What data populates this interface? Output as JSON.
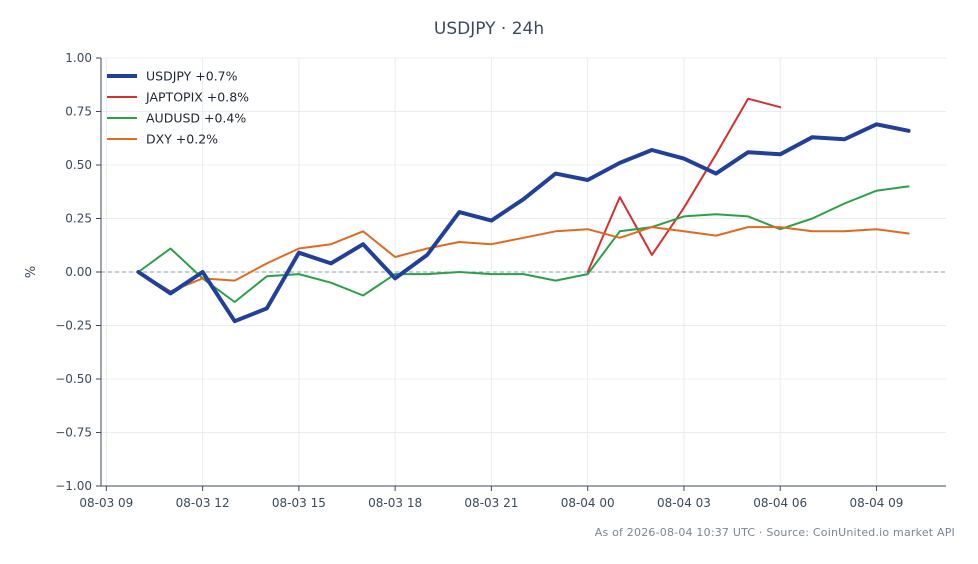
{
  "title": "USDJPY · 24h",
  "footer": "As of 2026-08-04 10:37 UTC · Source: CoinUnited.io market API",
  "colors": {
    "axis": "#3b4a5c",
    "grid": "#e8ecf1",
    "zero_line": "#8a9bb5",
    "text": "#3b4a5c",
    "footer": "#7a8594"
  },
  "chart_data": {
    "type": "line",
    "title": "USDJPY · 24h",
    "xlabel": "",
    "ylabel": "%",
    "ylim": [
      -1.0,
      1.0
    ],
    "yticks": [
      -1.0,
      -0.75,
      -0.5,
      -0.25,
      0.0,
      0.25,
      0.5,
      0.75,
      1.0
    ],
    "ytick_labels": [
      "−1.00",
      "−0.75",
      "−0.50",
      "−0.25",
      "0.00",
      "0.25",
      "0.50",
      "0.75",
      "1.00"
    ],
    "xlim": [
      "08-03 08:50",
      "08-04 11:10"
    ],
    "xticks": [
      "08-03 09:00",
      "08-03 12:00",
      "08-03 15:00",
      "08-03 18:00",
      "08-03 21:00",
      "08-04 00:00",
      "08-04 03:00",
      "08-04 06:00",
      "08-04 09:00"
    ],
    "xtick_labels": [
      "08-03 09",
      "08-03 12",
      "08-03 15",
      "08-03 18",
      "08-03 21",
      "08-04 00",
      "08-04 03",
      "08-04 06",
      "08-04 09"
    ],
    "grid": true,
    "zero_line": "dashed",
    "legend_position": "top-left",
    "series": [
      {
        "name": "USDJPY +0.7%",
        "color": "#22409a",
        "line_weight": "thick",
        "x": [
          "08-03 10:00",
          "08-03 11:00",
          "08-03 12:00",
          "08-03 13:00",
          "08-03 14:00",
          "08-03 15:00",
          "08-03 16:00",
          "08-03 17:00",
          "08-03 18:00",
          "08-03 19:00",
          "08-03 20:00",
          "08-03 21:00",
          "08-03 22:00",
          "08-03 23:00",
          "08-04 00:00",
          "08-04 01:00",
          "08-04 02:00",
          "08-04 03:00",
          "08-04 04:00",
          "08-04 05:00",
          "08-04 06:00",
          "08-04 07:00",
          "08-04 08:00",
          "08-04 09:00",
          "08-04 10:00"
        ],
        "values": [
          0.0,
          -0.1,
          0.0,
          -0.23,
          -0.17,
          0.09,
          0.04,
          0.13,
          -0.03,
          0.08,
          0.28,
          0.24,
          0.34,
          0.46,
          0.43,
          0.51,
          0.57,
          0.53,
          0.46,
          0.56,
          0.55,
          0.63,
          0.62,
          0.69,
          0.66
        ]
      },
      {
        "name": "JAPTOPIX +0.8%",
        "color": "#d62f2f",
        "line_weight": "normal",
        "x": [
          "08-04 00:00",
          "08-04 01:00",
          "08-04 02:00",
          "08-04 03:00",
          "08-04 04:00",
          "08-04 05:00",
          "08-04 06:00"
        ],
        "values": [
          0.0,
          0.35,
          0.08,
          0.3,
          0.55,
          0.81,
          0.77
        ]
      },
      {
        "name": "AUDUSD +0.4%",
        "color": "#2ca048",
        "line_weight": "normal",
        "x": [
          "08-03 10:00",
          "08-03 11:00",
          "08-03 12:00",
          "08-03 13:00",
          "08-03 14:00",
          "08-03 15:00",
          "08-03 16:00",
          "08-03 17:00",
          "08-03 18:00",
          "08-03 19:00",
          "08-03 20:00",
          "08-03 21:00",
          "08-03 22:00",
          "08-03 23:00",
          "08-04 00:00",
          "08-04 01:00",
          "08-04 02:00",
          "08-04 03:00",
          "08-04 04:00",
          "08-04 05:00",
          "08-04 06:00",
          "08-04 07:00",
          "08-04 08:00",
          "08-04 09:00",
          "08-04 10:00"
        ],
        "values": [
          0.0,
          0.11,
          -0.03,
          -0.14,
          -0.02,
          -0.01,
          -0.05,
          -0.11,
          -0.01,
          -0.01,
          0.0,
          -0.01,
          -0.01,
          -0.04,
          -0.01,
          0.19,
          0.21,
          0.26,
          0.27,
          0.26,
          0.2,
          0.25,
          0.32,
          0.38,
          0.4
        ]
      },
      {
        "name": "DXY +0.2%",
        "color": "#e06a1f",
        "line_weight": "normal",
        "x": [
          "08-03 10:00",
          "08-03 11:00",
          "08-03 12:00",
          "08-03 13:00",
          "08-03 14:00",
          "08-03 15:00",
          "08-03 16:00",
          "08-03 17:00",
          "08-03 18:00",
          "08-03 19:00",
          "08-03 20:00",
          "08-03 21:00",
          "08-03 22:00",
          "08-03 23:00",
          "08-04 00:00",
          "08-04 01:00",
          "08-04 02:00",
          "08-04 03:00",
          "08-04 04:00",
          "08-04 05:00",
          "08-04 06:00",
          "08-04 07:00",
          "08-04 08:00",
          "08-04 09:00",
          "08-04 10:00"
        ],
        "values": [
          0.0,
          -0.09,
          -0.03,
          -0.04,
          0.04,
          0.11,
          0.13,
          0.19,
          0.07,
          0.11,
          0.14,
          0.13,
          0.16,
          0.19,
          0.2,
          0.16,
          0.21,
          0.19,
          0.17,
          0.21,
          0.21,
          0.19,
          0.19,
          0.2,
          0.18
        ]
      }
    ]
  }
}
